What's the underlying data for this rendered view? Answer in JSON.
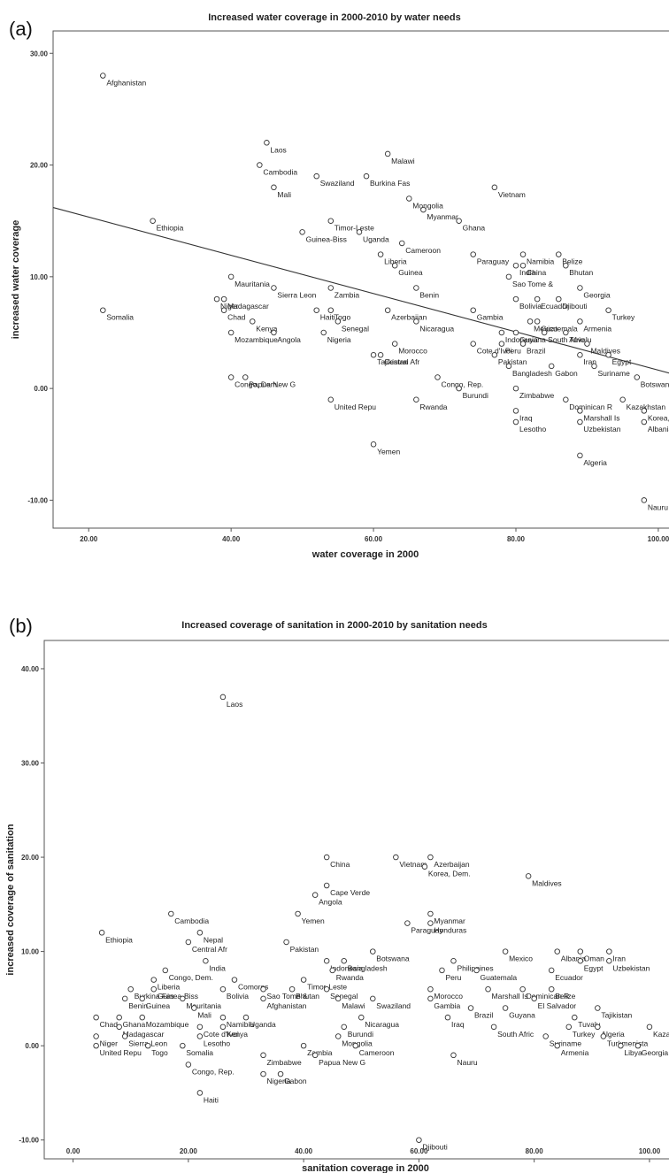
{
  "chart_data": [
    {
      "panel": "(a)",
      "type": "scatter",
      "title": "Increased water coverage in 2000-2010 by water needs",
      "xlabel": "water coverage in 2000",
      "ylabel": "increased water coverage",
      "xlim": [
        15,
        102
      ],
      "ylim": [
        -12.5,
        32
      ],
      "xticks": [
        "20.00",
        "40.00",
        "60.00",
        "80.00",
        "100.00"
      ],
      "yticks": [
        "-10.00",
        "0.00",
        "10.00",
        "20.00",
        "30.00"
      ],
      "fit_line": [
        [
          15,
          16.2
        ],
        [
          102,
          1.3
        ]
      ],
      "points": [
        {
          "x": 22,
          "y": 28,
          "label": "Afghanistan"
        },
        {
          "x": 45,
          "y": 22,
          "label": "Laos"
        },
        {
          "x": 44,
          "y": 20,
          "label": "Cambodia"
        },
        {
          "x": 46,
          "y": 18,
          "label": "Mali"
        },
        {
          "x": 52,
          "y": 19,
          "label": "Swaziland"
        },
        {
          "x": 62,
          "y": 21,
          "label": "Malawi"
        },
        {
          "x": 59,
          "y": 19,
          "label": "Burkina Fas"
        },
        {
          "x": 77,
          "y": 18,
          "label": "Vietnam"
        },
        {
          "x": 65,
          "y": 17,
          "label": "Mongolia"
        },
        {
          "x": 67,
          "y": 16,
          "label": "Myanmar"
        },
        {
          "x": 29,
          "y": 15,
          "label": "Ethiopia"
        },
        {
          "x": 54,
          "y": 15,
          "label": "Timor-Leste"
        },
        {
          "x": 72,
          "y": 15,
          "label": "Ghana"
        },
        {
          "x": 50,
          "y": 14,
          "label": "Guinea-Biss"
        },
        {
          "x": 58,
          "y": 14,
          "label": "Uganda"
        },
        {
          "x": 64,
          "y": 13,
          "label": "Cameroon"
        },
        {
          "x": 61,
          "y": 12,
          "label": "Liberia"
        },
        {
          "x": 74,
          "y": 12,
          "label": "Paraguay"
        },
        {
          "x": 81,
          "y": 12,
          "label": "Namibia"
        },
        {
          "x": 80,
          "y": 11,
          "label": "India"
        },
        {
          "x": 86,
          "y": 12,
          "label": "Belize"
        },
        {
          "x": 63,
          "y": 11,
          "label": "Guinea"
        },
        {
          "x": 81,
          "y": 11,
          "label": "China"
        },
        {
          "x": 87,
          "y": 11,
          "label": "Bhutan"
        },
        {
          "x": 40,
          "y": 10,
          "label": "Mauritania"
        },
        {
          "x": 79,
          "y": 10,
          "label": "Sao Tome &"
        },
        {
          "x": 46,
          "y": 9,
          "label": "Sierra Leon"
        },
        {
          "x": 54,
          "y": 9,
          "label": "Zambia"
        },
        {
          "x": 66,
          "y": 9,
          "label": "Benin"
        },
        {
          "x": 89,
          "y": 9,
          "label": "Georgia"
        },
        {
          "x": 80,
          "y": 8,
          "label": "Bolivia"
        },
        {
          "x": 83,
          "y": 8,
          "label": "Ecuador"
        },
        {
          "x": 86,
          "y": 8,
          "label": "Djibouti"
        },
        {
          "x": 93,
          "y": 7,
          "label": "Turkey"
        },
        {
          "x": 39,
          "y": 8,
          "label": "Madagascar"
        },
        {
          "x": 38,
          "y": 8,
          "label": "Niger"
        },
        {
          "x": 39,
          "y": 7,
          "label": "Chad"
        },
        {
          "x": 43,
          "y": 6,
          "label": "Kenya"
        },
        {
          "x": 52,
          "y": 7,
          "label": "Haiti"
        },
        {
          "x": 54,
          "y": 7,
          "label": "Togo"
        },
        {
          "x": 62,
          "y": 7,
          "label": "Azerbaijan"
        },
        {
          "x": 74,
          "y": 7,
          "label": "Gambia"
        },
        {
          "x": 22,
          "y": 7,
          "label": "Somalia"
        },
        {
          "x": 55,
          "y": 6,
          "label": "Senegal"
        },
        {
          "x": 66,
          "y": 6,
          "label": "Nicaragua"
        },
        {
          "x": 82,
          "y": 6,
          "label": "Mexico"
        },
        {
          "x": 83,
          "y": 6,
          "label": "Guatemala"
        },
        {
          "x": 89,
          "y": 6,
          "label": "Armenia"
        },
        {
          "x": 40,
          "y": 5,
          "label": "Mozambique"
        },
        {
          "x": 46,
          "y": 5,
          "label": "Angola"
        },
        {
          "x": 53,
          "y": 5,
          "label": "Nigeria"
        },
        {
          "x": 63,
          "y": 4,
          "label": "Morocco"
        },
        {
          "x": 78,
          "y": 5,
          "label": "Indonesia"
        },
        {
          "x": 80,
          "y": 5,
          "label": "Guyana"
        },
        {
          "x": 84,
          "y": 5,
          "label": "South Afric"
        },
        {
          "x": 87,
          "y": 5,
          "label": "Tuvalu"
        },
        {
          "x": 61,
          "y": 3,
          "label": "Central Afr"
        },
        {
          "x": 74,
          "y": 4,
          "label": "Cote d'Ivoi"
        },
        {
          "x": 78,
          "y": 4,
          "label": "Peru"
        },
        {
          "x": 81,
          "y": 4,
          "label": "Brazil"
        },
        {
          "x": 90,
          "y": 4,
          "label": "Maldives"
        },
        {
          "x": 60,
          "y": 3,
          "label": "Tajikistan"
        },
        {
          "x": 77,
          "y": 3,
          "label": "Pakistan"
        },
        {
          "x": 89,
          "y": 3,
          "label": "Iran"
        },
        {
          "x": 93,
          "y": 3,
          "label": "Egypt"
        },
        {
          "x": 79,
          "y": 2,
          "label": "Bangladesh"
        },
        {
          "x": 85,
          "y": 2,
          "label": "Gabon"
        },
        {
          "x": 91,
          "y": 2,
          "label": "Suriname"
        },
        {
          "x": 97,
          "y": 1,
          "label": "Botswana"
        },
        {
          "x": 40,
          "y": 1,
          "label": "Congo, Dem."
        },
        {
          "x": 42,
          "y": 1,
          "label": "Papua New G"
        },
        {
          "x": 69,
          "y": 1,
          "label": "Congo, Rep."
        },
        {
          "x": 80,
          "y": 0,
          "label": "Zimbabwe"
        },
        {
          "x": 72,
          "y": 0,
          "label": "Burundi"
        },
        {
          "x": 87,
          "y": -1,
          "label": "Dominican R"
        },
        {
          "x": 95,
          "y": -1,
          "label": "Kazakhstan"
        },
        {
          "x": 98,
          "y": -2,
          "label": "Korea, De"
        },
        {
          "x": 54,
          "y": -1,
          "label": "United Repu"
        },
        {
          "x": 66,
          "y": -1,
          "label": "Rwanda"
        },
        {
          "x": 80,
          "y": -2,
          "label": "Iraq"
        },
        {
          "x": 89,
          "y": -2,
          "label": "Marshall Is"
        },
        {
          "x": 80,
          "y": -3,
          "label": "Lesotho"
        },
        {
          "x": 89,
          "y": -3,
          "label": "Uzbekistan"
        },
        {
          "x": 98,
          "y": -3,
          "label": "Albania"
        },
        {
          "x": 60,
          "y": -5,
          "label": "Yemen"
        },
        {
          "x": 89,
          "y": -6,
          "label": "Algeria"
        },
        {
          "x": 98,
          "y": -10,
          "label": "Nauru"
        }
      ]
    },
    {
      "panel": "(b)",
      "type": "scatter",
      "title": "Increased coverage of sanitation in 2000-2010 by sanitation needs",
      "xlabel": "sanitation coverage in 2000",
      "ylabel": "increased coverage of sanitation",
      "xlim": [
        -5,
        104
      ],
      "ylim": [
        -12,
        43
      ],
      "xticks": [
        "0.00",
        "20.00",
        "40.00",
        "60.00",
        "80.00",
        "100.00"
      ],
      "yticks": [
        "-10.00",
        "0.00",
        "10.00",
        "20.00",
        "30.00",
        "40.00"
      ],
      "points": [
        {
          "x": 26,
          "y": 37,
          "label": "Laos"
        },
        {
          "x": 62,
          "y": 20,
          "label": "Azerbaijan"
        },
        {
          "x": 44,
          "y": 20,
          "label": "China"
        },
        {
          "x": 56,
          "y": 20,
          "label": "Vietnam"
        },
        {
          "x": 61,
          "y": 19,
          "label": "Korea, Dem."
        },
        {
          "x": 79,
          "y": 18,
          "label": "Maldives"
        },
        {
          "x": 44,
          "y": 17,
          "label": "Cape Verde"
        },
        {
          "x": 42,
          "y": 16,
          "label": "Angola"
        },
        {
          "x": 17,
          "y": 14,
          "label": "Cambodia"
        },
        {
          "x": 39,
          "y": 14,
          "label": "Yemen"
        },
        {
          "x": 62,
          "y": 14,
          "label": "Myanmar"
        },
        {
          "x": 58,
          "y": 13,
          "label": "Paraguay"
        },
        {
          "x": 62,
          "y": 13,
          "label": "Honduras"
        },
        {
          "x": 5,
          "y": 12,
          "label": "Ethiopia"
        },
        {
          "x": 22,
          "y": 12,
          "label": "Nepal"
        },
        {
          "x": 37,
          "y": 11,
          "label": "Pakistan"
        },
        {
          "x": 20,
          "y": 11,
          "label": "Central Afr"
        },
        {
          "x": 93,
          "y": 10,
          "label": "Iran"
        },
        {
          "x": 52,
          "y": 10,
          "label": "Botswana"
        },
        {
          "x": 75,
          "y": 10,
          "label": "Mexico"
        },
        {
          "x": 84,
          "y": 10,
          "label": "Albania"
        },
        {
          "x": 88,
          "y": 10,
          "label": "Oman"
        },
        {
          "x": 23,
          "y": 9,
          "label": "India"
        },
        {
          "x": 44,
          "y": 9,
          "label": "Indonesia"
        },
        {
          "x": 47,
          "y": 9,
          "label": "Bangladesh"
        },
        {
          "x": 66,
          "y": 9,
          "label": "Philippines"
        },
        {
          "x": 88,
          "y": 9,
          "label": "Egypt"
        },
        {
          "x": 93,
          "y": 9,
          "label": "Uzbekistan"
        },
        {
          "x": 16,
          "y": 8,
          "label": "Congo, Dem."
        },
        {
          "x": 45,
          "y": 8,
          "label": "Rwanda"
        },
        {
          "x": 64,
          "y": 8,
          "label": "Peru"
        },
        {
          "x": 70,
          "y": 8,
          "label": "Guatemala"
        },
        {
          "x": 83,
          "y": 8,
          "label": "Ecuador"
        },
        {
          "x": 14,
          "y": 7,
          "label": "Liberia"
        },
        {
          "x": 28,
          "y": 7,
          "label": "Comoros"
        },
        {
          "x": 40,
          "y": 7,
          "label": "Timor-Leste"
        },
        {
          "x": 44,
          "y": 6,
          "label": "Senegal"
        },
        {
          "x": 10,
          "y": 6,
          "label": "Burkina Fas"
        },
        {
          "x": 14,
          "y": 6,
          "label": "Guinea-Biss"
        },
        {
          "x": 26,
          "y": 6,
          "label": "Bolivia"
        },
        {
          "x": 33,
          "y": 6,
          "label": "Sao Tome &"
        },
        {
          "x": 38,
          "y": 6,
          "label": "Bhutan"
        },
        {
          "x": 62,
          "y": 6,
          "label": "Morocco"
        },
        {
          "x": 72,
          "y": 6,
          "label": "Marshall Is"
        },
        {
          "x": 78,
          "y": 6,
          "label": "Dominican R"
        },
        {
          "x": 83,
          "y": 6,
          "label": "Belize"
        },
        {
          "x": 9,
          "y": 5,
          "label": "Benin"
        },
        {
          "x": 12,
          "y": 5,
          "label": "Guinea"
        },
        {
          "x": 19,
          "y": 5,
          "label": "Mauritania"
        },
        {
          "x": 33,
          "y": 5,
          "label": "Afghanistan"
        },
        {
          "x": 46,
          "y": 5,
          "label": "Malawi"
        },
        {
          "x": 52,
          "y": 5,
          "label": "Swaziland"
        },
        {
          "x": 62,
          "y": 5,
          "label": "Gambia"
        },
        {
          "x": 80,
          "y": 5,
          "label": "El Salvador"
        },
        {
          "x": 21,
          "y": 4,
          "label": "Mali"
        },
        {
          "x": 69,
          "y": 4,
          "label": "Brazil"
        },
        {
          "x": 75,
          "y": 4,
          "label": "Guyana"
        },
        {
          "x": 91,
          "y": 4,
          "label": "Tajikistan"
        },
        {
          "x": 4,
          "y": 3,
          "label": "Chad"
        },
        {
          "x": 8,
          "y": 3,
          "label": "Ghana"
        },
        {
          "x": 12,
          "y": 3,
          "label": "Mozambique"
        },
        {
          "x": 26,
          "y": 3,
          "label": "Namibia"
        },
        {
          "x": 30,
          "y": 3,
          "label": "Uganda"
        },
        {
          "x": 50,
          "y": 3,
          "label": "Nicaragua"
        },
        {
          "x": 65,
          "y": 3,
          "label": "Iraq"
        },
        {
          "x": 87,
          "y": 3,
          "label": "Tuvalu"
        },
        {
          "x": 8,
          "y": 2,
          "label": "Madagascar"
        },
        {
          "x": 22,
          "y": 2,
          "label": "Cote d'Ivoi"
        },
        {
          "x": 26,
          "y": 2,
          "label": "Kenya"
        },
        {
          "x": 47,
          "y": 2,
          "label": "Burundi"
        },
        {
          "x": 73,
          "y": 2,
          "label": "South Afric"
        },
        {
          "x": 86,
          "y": 2,
          "label": "Turkey"
        },
        {
          "x": 91,
          "y": 2,
          "label": "Algeria"
        },
        {
          "x": 100,
          "y": 2,
          "label": "Kazakhstan"
        },
        {
          "x": 4,
          "y": 1,
          "label": "Niger"
        },
        {
          "x": 9,
          "y": 1,
          "label": "Sierra Leon"
        },
        {
          "x": 22,
          "y": 1,
          "label": "Lesotho"
        },
        {
          "x": 46,
          "y": 1,
          "label": "Mongolia"
        },
        {
          "x": 82,
          "y": 1,
          "label": "Suriname"
        },
        {
          "x": 92,
          "y": 1,
          "label": "Turkmenista"
        },
        {
          "x": 4,
          "y": 0,
          "label": "United Repu"
        },
        {
          "x": 13,
          "y": 0,
          "label": "Togo"
        },
        {
          "x": 19,
          "y": 0,
          "label": "Somalia"
        },
        {
          "x": 40,
          "y": 0,
          "label": "Zambia"
        },
        {
          "x": 49,
          "y": 0,
          "label": "Cameroon"
        },
        {
          "x": 84,
          "y": 0,
          "label": "Armenia"
        },
        {
          "x": 95,
          "y": 0,
          "label": "Libya"
        },
        {
          "x": 98,
          "y": 0,
          "label": "Georgia"
        },
        {
          "x": 33,
          "y": -1,
          "label": "Zimbabwe"
        },
        {
          "x": 42,
          "y": -1,
          "label": "Papua New G"
        },
        {
          "x": 66,
          "y": -1,
          "label": "Nauru"
        },
        {
          "x": 20,
          "y": -2,
          "label": "Congo, Rep."
        },
        {
          "x": 33,
          "y": -3,
          "label": "Nigeria"
        },
        {
          "x": 36,
          "y": -3,
          "label": "Gabon"
        },
        {
          "x": 22,
          "y": -5,
          "label": "Haiti"
        },
        {
          "x": 60,
          "y": -10,
          "label": "Djibouti"
        }
      ]
    }
  ]
}
